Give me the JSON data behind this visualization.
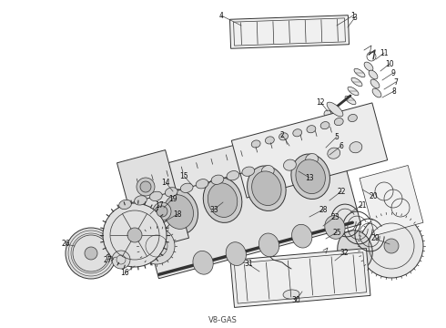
{
  "footer_text": "V8-GAS",
  "bg_color": "#ffffff",
  "line_color": "#333333",
  "fig_width": 4.9,
  "fig_height": 3.6,
  "dpi": 100
}
